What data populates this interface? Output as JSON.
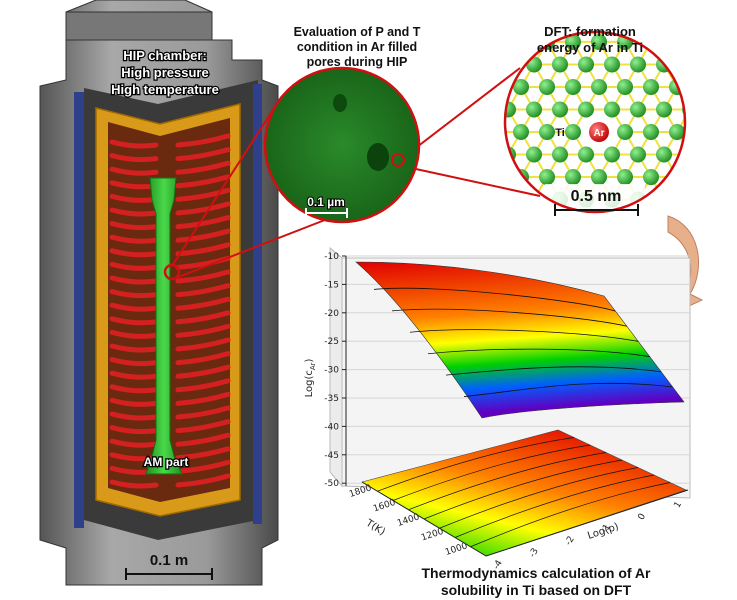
{
  "figure": {
    "chamber": {
      "title_lines": [
        "HIP chamber:",
        "High pressure",
        "High temperature"
      ],
      "part_label": "AM part",
      "scale_label": "0.1 m"
    },
    "pore_view": {
      "title_lines": [
        "Evaluation of P and T",
        "condition in Ar filled",
        "pores during HIP"
      ],
      "scale_label": "0.1 µm"
    },
    "dft_view": {
      "title_lines": [
        "DFT: formation",
        "energy of Ar in Ti"
      ],
      "ti_label": "Ti",
      "ar_label": "Ar",
      "scale_label": "0.5 nm"
    },
    "thermo": {
      "caption_lines": [
        "Thermodynamics calculation of Ar",
        "solubility in Ti based on DFT"
      ],
      "z_axis_label": "Log(c",
      "z_axis_label_sub": "Ar",
      "z_axis_label_end": ")",
      "z_ticks": [
        "-10",
        "-15",
        "-20",
        "-25",
        "-30",
        "-35",
        "-40",
        "-45",
        "-50"
      ],
      "t_axis_label": "T(K)",
      "t_ticks": [
        "1800",
        "1600",
        "1400",
        "1200",
        "1000"
      ],
      "p_axis_label": "Log(p)",
      "p_ticks": [
        "-4",
        "-3",
        "-2",
        "-1",
        "0",
        "1"
      ]
    },
    "colors": {
      "chamber_outer": "#8a8a8a",
      "chamber_blue": "#2f3f8a",
      "heater_red": "#d42020",
      "frame_gold": "#e8a820",
      "part_green": "#2fbf2f",
      "pore_green": "#1f7a1f",
      "callout_red": "#d01010",
      "ti_atom": "#2faa2f",
      "ar_atom": "#e02020",
      "bond_yellow": "#f0e040"
    }
  }
}
